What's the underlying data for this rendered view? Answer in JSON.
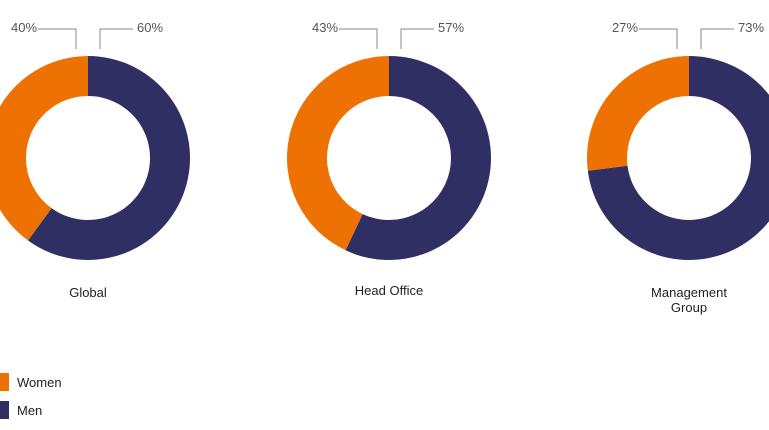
{
  "chart_data": [
    {
      "type": "pie",
      "title": "Global",
      "categories": [
        "Women",
        "Men"
      ],
      "values": [
        40,
        60
      ],
      "labels": [
        "40%",
        "60%"
      ]
    },
    {
      "type": "pie",
      "title": "Head Office",
      "categories": [
        "Women",
        "Men"
      ],
      "values": [
        43,
        57
      ],
      "labels": [
        "43%",
        "57%"
      ]
    },
    {
      "type": "pie",
      "title": "Management\nGroup",
      "categories": [
        "Women",
        "Men"
      ],
      "values": [
        27,
        73
      ],
      "labels": [
        "27%",
        "73%"
      ]
    }
  ],
  "legend": {
    "placement": "bottom-left",
    "items": [
      {
        "label": "Women",
        "color": "#ee7203"
      },
      {
        "label": "Men",
        "color": "#2f2f63"
      }
    ]
  }
}
